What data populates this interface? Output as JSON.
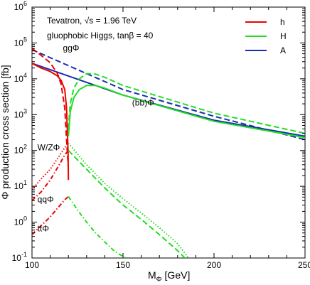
{
  "chart_data": {
    "type": "line",
    "title_line1": "Tevatron, √s = 1.96 TeV",
    "title_line2": "gluophobic Higgs, tanβ = 40",
    "xlabel_main": "M",
    "xlabel_sub": "Φ",
    "xlabel_unit": " [GeV]",
    "ylabel": "Φ production cross section [fb]",
    "xlim": [
      100,
      250
    ],
    "ylim": [
      0.1,
      1000000
    ],
    "yscale": "log",
    "x_ticks": [
      100,
      150,
      200,
      250
    ],
    "x_tick_labels": [
      "100",
      "150",
      "200",
      "250"
    ],
    "y_ticks": [
      {
        "value": 0.1,
        "base": "10",
        "exp": "-1"
      },
      {
        "value": 1,
        "base": "10",
        "exp": "0"
      },
      {
        "value": 10,
        "base": "10",
        "exp": "1"
      },
      {
        "value": 100,
        "base": "10",
        "exp": "2"
      },
      {
        "value": 1000,
        "base": "10",
        "exp": "3"
      },
      {
        "value": 10000,
        "base": "10",
        "exp": "4"
      },
      {
        "value": 100000,
        "base": "10",
        "exp": "5"
      },
      {
        "value": 1000000,
        "base": "10",
        "exp": "6"
      }
    ],
    "legend": [
      {
        "name": "h",
        "color": "#ee0000"
      },
      {
        "name": "H",
        "color": "#22dd22"
      },
      {
        "name": "A",
        "color": "#1a2fb0"
      }
    ],
    "annotations": [
      {
        "text": "ggΦ",
        "x": 117,
        "y": 60000
      },
      {
        "text": "(bb)Φ",
        "x": 155,
        "y": 1800
      },
      {
        "text": "W/ZΦ",
        "x": 103,
        "y": 100
      },
      {
        "text": "qqΦ",
        "x": 103,
        "y": 3.6
      },
      {
        "text": "ttΦ",
        "x": 103,
        "y": 0.55
      }
    ],
    "series": [
      {
        "process": "bbPhi",
        "higgs": "A",
        "color": "#1a2fb0",
        "style": "solid",
        "x": [
          100,
          150,
          200,
          250
        ],
        "y": [
          27000,
          3500,
          700,
          250
        ]
      },
      {
        "process": "ggPhi",
        "higgs": "A",
        "color": "#1a2fb0",
        "style": "dashed",
        "x": [
          100,
          150,
          200,
          250
        ],
        "y": [
          65000,
          5000,
          900,
          200
        ]
      },
      {
        "process": "bbPhi",
        "higgs": "h",
        "color": "#ee0000",
        "style": "solid",
        "x": [
          100,
          105,
          110,
          114,
          116,
          118,
          119,
          119.8,
          120
        ],
        "y": [
          27000,
          20000,
          16000,
          12000,
          9000,
          5000,
          1500,
          100,
          15
        ]
      },
      {
        "process": "ggPhi",
        "higgs": "h",
        "color": "#ee0000",
        "style": "dashed",
        "x": [
          100,
          105,
          110,
          114,
          116,
          118,
          119,
          120
        ],
        "y": [
          70000,
          45000,
          28000,
          14000,
          7000,
          1500,
          200,
          30
        ]
      },
      {
        "process": "bbPhi",
        "higgs": "H",
        "color": "#22dd22",
        "style": "solid",
        "x": [
          120,
          121,
          123,
          126,
          130,
          135,
          140,
          150,
          200,
          250
        ],
        "y": [
          250,
          1200,
          3000,
          5000,
          6500,
          6500,
          5500,
          3500,
          650,
          230
        ]
      },
      {
        "process": "ggPhi",
        "higgs": "H",
        "color": "#22dd22",
        "style": "dashed",
        "x": [
          120,
          121,
          123,
          126,
          130,
          135,
          140,
          150,
          200,
          250
        ],
        "y": [
          400,
          2000,
          5500,
          10000,
          14000,
          13500,
          11000,
          6500,
          1100,
          300
        ]
      },
      {
        "process": "WZPhi",
        "higgs": "h",
        "color": "#ee0000",
        "style": "dotted",
        "x": [
          100,
          105,
          110,
          115,
          118,
          120
        ],
        "y": [
          8,
          16,
          30,
          70,
          120,
          160
        ]
      },
      {
        "process": "qqPhi",
        "higgs": "h",
        "color": "#ee0000",
        "style": "dashdot",
        "x": [
          100,
          105,
          110,
          115,
          118,
          120
        ],
        "y": [
          4,
          7,
          15,
          40,
          75,
          100
        ]
      },
      {
        "process": "ttPhi",
        "higgs": "h",
        "color": "#ee0000",
        "style": "dashdot",
        "x": [
          100,
          105,
          110,
          115,
          118,
          120
        ],
        "y": [
          0.45,
          0.8,
          1.4,
          2.8,
          4.2,
          5.2
        ]
      },
      {
        "process": "WZPhi",
        "higgs": "H",
        "color": "#22dd22",
        "style": "dotted",
        "x": [
          120,
          130,
          140,
          150,
          160,
          170,
          180,
          186
        ],
        "y": [
          160,
          40,
          12,
          4.5,
          1.8,
          0.7,
          0.25,
          0.1
        ]
      },
      {
        "process": "qqPhi",
        "higgs": "H",
        "color": "#22dd22",
        "style": "dashed",
        "x": [
          120,
          130,
          140,
          150,
          160,
          170,
          180,
          184
        ],
        "y": [
          100,
          30,
          9,
          3,
          1.2,
          0.45,
          0.16,
          0.1
        ]
      },
      {
        "process": "ttPhi",
        "higgs": "H",
        "color": "#22dd22",
        "style": "dashdot",
        "x": [
          120,
          125,
          130,
          135,
          140,
          145,
          150,
          155
        ],
        "y": [
          5.2,
          2.2,
          1.0,
          0.5,
          0.28,
          0.16,
          0.11,
          0.08
        ]
      }
    ]
  }
}
